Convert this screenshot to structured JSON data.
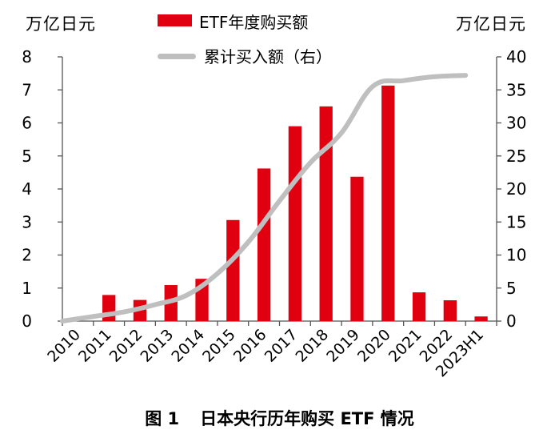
{
  "chart_data": {
    "type": "bar+line",
    "categories": [
      "2010",
      "2011",
      "2012",
      "2013",
      "2014",
      "2015",
      "2016",
      "2017",
      "2018",
      "2019",
      "2020",
      "2021",
      "2022",
      "2023H1"
    ],
    "series": [
      {
        "name": "ETF年度购买额",
        "axis": "left",
        "kind": "bar",
        "color": "#e00010",
        "values": [
          0,
          0.79,
          0.64,
          1.09,
          1.28,
          3.06,
          4.62,
          5.9,
          6.5,
          4.37,
          7.13,
          0.87,
          0.63,
          0.14
        ]
      },
      {
        "name": "累计买入额（右）",
        "axis": "right",
        "kind": "line",
        "color": "#bfbfbf",
        "values": [
          0.0,
          0.7,
          1.4,
          2.5,
          3.9,
          7.2,
          12.0,
          18.2,
          24.0,
          28.5,
          35.5,
          36.4,
          37.0,
          37.2
        ]
      }
    ],
    "y_left": {
      "unit": "万亿日元",
      "min": 0,
      "max": 8,
      "ticks": [
        0,
        1,
        2,
        3,
        4,
        5,
        6,
        7,
        8
      ]
    },
    "y_right": {
      "unit": "万亿日元",
      "min": 0,
      "max": 40,
      "ticks": [
        0,
        5,
        10,
        15,
        20,
        25,
        30,
        35,
        40
      ]
    },
    "legend": [
      "ETF年度购买额",
      "累计买入额（右）"
    ],
    "caption_num": "图 1",
    "caption_text": "日本央行历年购买 ETF 情况"
  }
}
